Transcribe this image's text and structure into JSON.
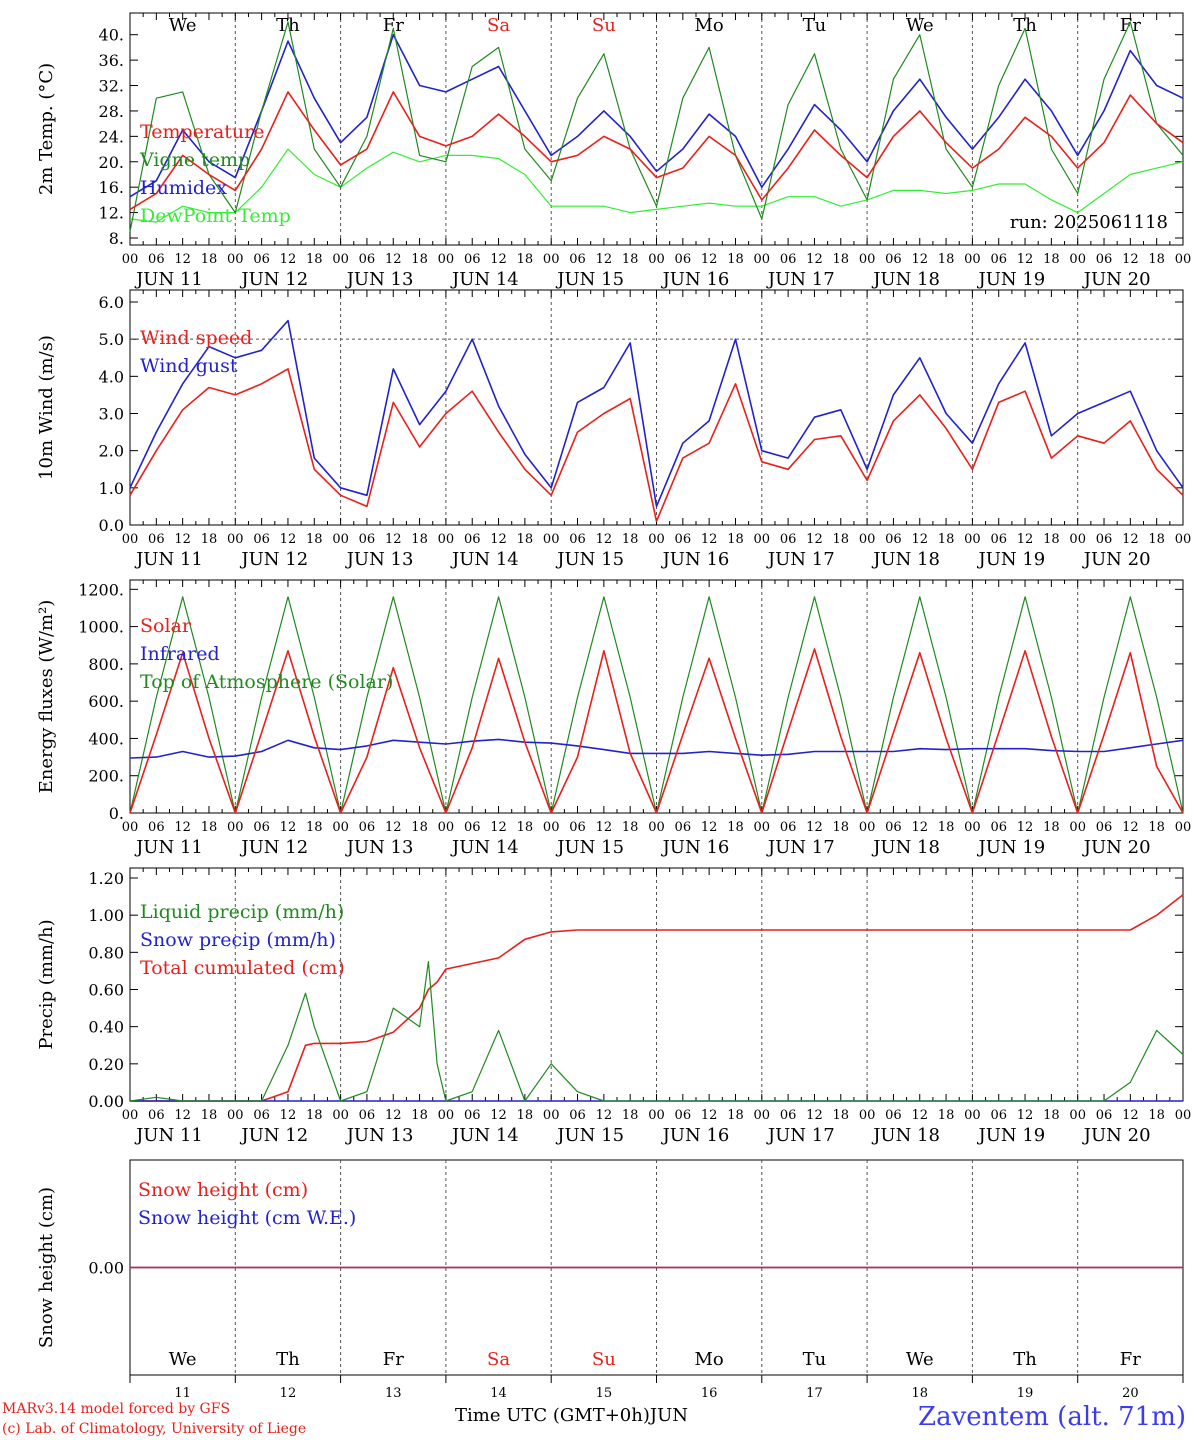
{
  "run_label": "run: 2025061118",
  "station": "Zaventem (alt. 71m)",
  "footer": {
    "model": "MARv3.14 model forced by GFS",
    "credit": "(c) Lab. of Climatology, University of Liege",
    "time_axis": "Time UTC (GMT+0h)",
    "month": "JUN"
  },
  "days": [
    {
      "dom": "11",
      "weekday": "We",
      "label": "JUN 11",
      "weekend": false
    },
    {
      "dom": "12",
      "weekday": "Th",
      "label": "JUN 12",
      "weekend": false
    },
    {
      "dom": "13",
      "weekday": "Fr",
      "label": "JUN 13",
      "weekend": false
    },
    {
      "dom": "14",
      "weekday": "Sa",
      "label": "JUN 14",
      "weekend": true
    },
    {
      "dom": "15",
      "weekday": "Su",
      "label": "JUN 15",
      "weekend": true
    },
    {
      "dom": "16",
      "weekday": "Mo",
      "label": "JUN 16",
      "weekend": false
    },
    {
      "dom": "17",
      "weekday": "Tu",
      "label": "JUN 17",
      "weekend": false
    },
    {
      "dom": "18",
      "weekday": "We",
      "label": "JUN 18",
      "weekend": false
    },
    {
      "dom": "19",
      "weekday": "Th",
      "label": "JUN 19",
      "weekend": false
    },
    {
      "dom": "20",
      "weekday": "Fr",
      "label": "JUN 20",
      "weekend": false
    }
  ],
  "hour_ticks": [
    "00",
    "06",
    "12",
    "18"
  ],
  "colors": {
    "red": "#e8201b",
    "green": "#1f8a1f",
    "blue": "#2222cc",
    "light_green": "#33ee33",
    "weekend": "#e8201b"
  },
  "chart_data": [
    {
      "type": "line",
      "ylabel": "2m Temp. (°C)",
      "ylim": [
        8,
        42
      ],
      "yticks": [
        "8.",
        "12.",
        "16.",
        "20.",
        "24.",
        "28.",
        "32.",
        "36.",
        "40."
      ],
      "x_hours": [
        0,
        6,
        12,
        18,
        24,
        30,
        36,
        42,
        48,
        54,
        60,
        66,
        72,
        78,
        84,
        90,
        96,
        102,
        108,
        114,
        120,
        126,
        132,
        138,
        144,
        150,
        156,
        162,
        168,
        174,
        180,
        186,
        192,
        198,
        204,
        210,
        216,
        222,
        228,
        234,
        240
      ],
      "series": [
        {
          "name": "Temperature",
          "color": "red",
          "values": [
            12.5,
            15,
            21,
            18,
            15.5,
            22,
            31,
            25,
            19.5,
            22,
            31,
            24,
            22.5,
            24,
            27.5,
            24,
            20,
            21,
            24,
            22,
            17.5,
            19,
            24,
            21,
            14,
            19,
            25,
            21,
            17.5,
            24,
            28,
            23,
            19,
            22,
            27,
            24,
            19,
            23,
            30.5,
            26,
            23
          ]
        },
        {
          "name": "Vigne temp",
          "color": "green",
          "values": [
            9,
            30,
            31,
            18,
            12,
            28,
            42,
            22,
            16,
            24,
            41,
            21,
            20,
            35,
            38,
            22,
            17,
            30,
            37,
            22,
            13,
            30,
            38,
            21,
            11,
            29,
            37,
            22,
            14,
            33,
            40,
            22,
            16,
            32,
            41,
            22,
            15,
            33,
            42,
            26,
            21
          ]
        },
        {
          "name": "Humidex",
          "color": "blue",
          "values": [
            14.5,
            17,
            25,
            20,
            17.5,
            28,
            39,
            30,
            23,
            27,
            40,
            32,
            31,
            33,
            35,
            28,
            21,
            24,
            28,
            24,
            18.5,
            22,
            27.5,
            24,
            16,
            22,
            29,
            25,
            20,
            28,
            33,
            27,
            22,
            27,
            33,
            28,
            21,
            28,
            37.5,
            32,
            30
          ]
        },
        {
          "name": "DewPoint Temp",
          "color": "light_green",
          "values": [
            11,
            10.5,
            13,
            12,
            12,
            16,
            22,
            18,
            16,
            19,
            21.5,
            20,
            21,
            21,
            20.5,
            18,
            13,
            13,
            13,
            12,
            12.5,
            13,
            13.5,
            13,
            13,
            14.5,
            14.5,
            13,
            14,
            15.5,
            15.5,
            15,
            15.5,
            16.5,
            16.5,
            14,
            12,
            15,
            18,
            19,
            20
          ]
        }
      ]
    },
    {
      "type": "line",
      "ylabel": "10m Wind (m/s)",
      "ylim": [
        0,
        6
      ],
      "yticks": [
        "0.0",
        "1.0",
        "2.0",
        "3.0",
        "4.0",
        "5.0",
        "6.0"
      ],
      "x_hours": [
        0,
        6,
        12,
        18,
        24,
        30,
        36,
        42,
        48,
        54,
        60,
        66,
        72,
        78,
        84,
        90,
        96,
        102,
        108,
        114,
        120,
        126,
        132,
        138,
        144,
        150,
        156,
        162,
        168,
        174,
        180,
        186,
        192,
        198,
        204,
        210,
        216,
        222,
        228,
        234,
        240
      ],
      "series": [
        {
          "name": "Wind speed",
          "color": "red",
          "values": [
            0.8,
            2,
            3.1,
            3.7,
            3.5,
            3.8,
            4.2,
            1.5,
            0.8,
            0.5,
            3.3,
            2.1,
            3,
            3.6,
            2.5,
            1.5,
            0.8,
            2.5,
            3,
            3.4,
            0.1,
            1.8,
            2.2,
            3.8,
            1.7,
            1.5,
            2.3,
            2.4,
            1.2,
            2.8,
            3.5,
            2.6,
            1.5,
            3.3,
            3.6,
            1.8,
            2.4,
            2.2,
            2.8,
            1.5,
            0.8
          ]
        },
        {
          "name": "Wind gust",
          "color": "blue",
          "values": [
            1,
            2.5,
            3.8,
            4.8,
            4.5,
            4.7,
            5.5,
            1.8,
            1,
            0.8,
            4.2,
            2.7,
            3.6,
            5,
            3.2,
            1.9,
            1,
            3.3,
            3.7,
            4.9,
            0.5,
            2.2,
            2.8,
            5,
            2,
            1.8,
            2.9,
            3.1,
            1.5,
            3.5,
            4.5,
            3,
            2.2,
            3.8,
            4.9,
            2.4,
            3,
            3.3,
            3.6,
            2,
            1
          ]
        }
      ]
    },
    {
      "type": "line",
      "ylabel": "Energy fluxes (W/m²)",
      "ylim": [
        0,
        1250
      ],
      "yticks": [
        "0.",
        "200.",
        "400.",
        "600.",
        "800.",
        "1000.",
        "1200."
      ],
      "x_hours": [
        0,
        6,
        12,
        18,
        24,
        30,
        36,
        42,
        48,
        54,
        60,
        66,
        72,
        78,
        84,
        90,
        96,
        102,
        108,
        114,
        120,
        126,
        132,
        138,
        144,
        150,
        156,
        162,
        168,
        174,
        180,
        186,
        192,
        198,
        204,
        210,
        216,
        222,
        228,
        234,
        240
      ],
      "series": [
        {
          "name": "Solar",
          "color": "red",
          "values": [
            0,
            420,
            860,
            400,
            0,
            430,
            870,
            410,
            0,
            300,
            780,
            350,
            0,
            350,
            830,
            380,
            0,
            300,
            870,
            320,
            0,
            420,
            830,
            400,
            0,
            440,
            880,
            410,
            0,
            430,
            860,
            400,
            0,
            430,
            870,
            410,
            0,
            420,
            860,
            250,
            0
          ]
        },
        {
          "name": "Infrared",
          "color": "blue",
          "values": [
            295,
            300,
            330,
            300,
            305,
            330,
            390,
            350,
            340,
            360,
            390,
            380,
            370,
            385,
            395,
            380,
            375,
            360,
            340,
            320,
            320,
            320,
            330,
            320,
            310,
            315,
            330,
            330,
            330,
            330,
            345,
            340,
            345,
            345,
            345,
            335,
            330,
            330,
            350,
            370,
            390
          ]
        },
        {
          "name": "Top of Atmosphere (Solar)",
          "color": "green",
          "values": [
            0,
            620,
            1160,
            620,
            0,
            620,
            1160,
            620,
            0,
            620,
            1160,
            620,
            0,
            620,
            1160,
            620,
            0,
            620,
            1160,
            620,
            0,
            620,
            1160,
            620,
            0,
            620,
            1160,
            620,
            0,
            620,
            1160,
            620,
            0,
            620,
            1160,
            620,
            0,
            620,
            1160,
            620,
            0
          ]
        }
      ]
    },
    {
      "type": "line",
      "ylabel": "Precip (mm/h)",
      "ylim": [
        0,
        1.2
      ],
      "yticks": [
        "0.00",
        "0.20",
        "0.40",
        "0.60",
        "0.80",
        "1.00",
        "1.20"
      ],
      "x_hours": [
        0,
        6,
        12,
        18,
        24,
        30,
        36,
        40,
        42,
        48,
        54,
        60,
        66,
        68,
        70,
        72,
        78,
        84,
        90,
        96,
        102,
        108,
        114,
        120,
        126,
        132,
        138,
        144,
        150,
        156,
        162,
        168,
        174,
        180,
        186,
        192,
        198,
        204,
        210,
        216,
        222,
        228,
        234,
        240
      ],
      "series": [
        {
          "name": "Liquid precip (mm/h)",
          "color": "green",
          "values": [
            0,
            0.02,
            0,
            0,
            0,
            0,
            0.3,
            0.58,
            0.4,
            0,
            0.05,
            0.5,
            0.4,
            0.75,
            0.2,
            0,
            0.05,
            0.38,
            0,
            0.2,
            0.05,
            0,
            0,
            0,
            0,
            0,
            0,
            0,
            0,
            0,
            0,
            0,
            0,
            0,
            0,
            0,
            0,
            0,
            0,
            0,
            0,
            0.1,
            0.38,
            0.25
          ]
        },
        {
          "name": "Snow precip (mm/h)",
          "color": "blue",
          "values": [
            0,
            0,
            0,
            0,
            0,
            0,
            0,
            0,
            0,
            0,
            0,
            0,
            0,
            0,
            0,
            0,
            0,
            0,
            0,
            0,
            0,
            0,
            0,
            0,
            0,
            0,
            0,
            0,
            0,
            0,
            0,
            0,
            0,
            0,
            0,
            0,
            0,
            0,
            0,
            0,
            0,
            0,
            0,
            0
          ]
        },
        {
          "name": "Total cumulated (cm)",
          "color": "red",
          "values": [
            0,
            0,
            0,
            0,
            0,
            0,
            0.05,
            0.3,
            0.31,
            0.31,
            0.32,
            0.37,
            0.5,
            0.6,
            0.64,
            0.71,
            0.74,
            0.77,
            0.87,
            0.91,
            0.92,
            0.92,
            0.92,
            0.92,
            0.92,
            0.92,
            0.92,
            0.92,
            0.92,
            0.92,
            0.92,
            0.92,
            0.92,
            0.92,
            0.92,
            0.92,
            0.92,
            0.92,
            0.92,
            0.92,
            0.92,
            0.92,
            1.0,
            1.11
          ]
        }
      ]
    },
    {
      "type": "line",
      "ylabel": "Snow height (cm)",
      "ylim": [
        -1,
        1
      ],
      "yticks": [
        "0.00"
      ],
      "x_hours": [
        0,
        240
      ],
      "series": [
        {
          "name": "Snow height (cm)",
          "color": "red",
          "values": [
            0,
            0
          ]
        },
        {
          "name": "Snow height (cm W.E.)",
          "color": "blue",
          "values": [
            0,
            0
          ]
        }
      ]
    }
  ]
}
